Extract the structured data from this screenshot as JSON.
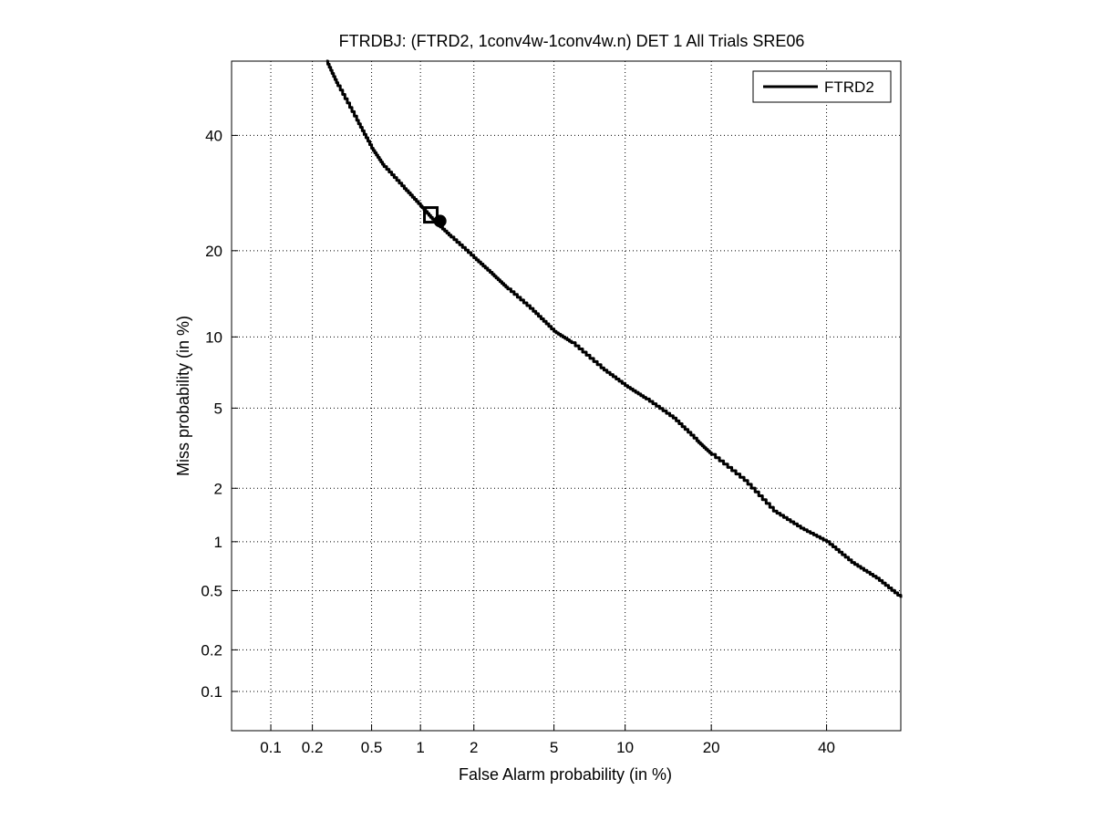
{
  "chart_data": {
    "type": "line",
    "title": "FTRDBJ: (FTRD2, 1conv4w-1conv4w.n) DET 1 All Trials SRE06",
    "xlabel": "False Alarm probability (in %)",
    "ylabel": "Miss probability (in %)",
    "x_scale": "normal-deviate (probit)",
    "y_scale": "normal-deviate (probit)",
    "xlim": [
      0.05,
      55
    ],
    "ylim": [
      0.05,
      55
    ],
    "x_ticks": [
      0.1,
      0.2,
      0.5,
      1,
      2,
      5,
      10,
      20,
      40
    ],
    "x_tick_labels": [
      "0.1",
      "0.2",
      "0.5",
      "1",
      "2",
      "5",
      "10",
      "20",
      "40"
    ],
    "y_ticks": [
      0.1,
      0.2,
      0.5,
      1,
      2,
      5,
      10,
      20,
      40
    ],
    "y_tick_labels": [
      "0.1",
      "0.2",
      "0.5",
      "1",
      "2",
      "5",
      "10",
      "20",
      "40"
    ],
    "grid": true,
    "legend_position": "top-right",
    "series": [
      {
        "name": "FTRD2",
        "color": "#000000",
        "x": [
          0.25,
          0.3,
          0.4,
          0.5,
          0.6,
          0.8,
          1.0,
          1.2,
          1.5,
          2.0,
          2.5,
          3.0,
          4.0,
          5.0,
          6.0,
          8.0,
          10.0,
          12.0,
          15.0,
          18.0,
          20.0,
          25.0,
          30.0,
          35.0,
          40.0,
          45.0,
          50.0,
          55.0
        ],
        "y": [
          55.0,
          50.0,
          43.0,
          37.5,
          34.0,
          30.0,
          27.0,
          24.5,
          22.0,
          19.0,
          16.8,
          15.0,
          12.5,
          10.5,
          9.5,
          7.5,
          6.3,
          5.5,
          4.5,
          3.5,
          3.0,
          2.2,
          1.5,
          1.2,
          1.0,
          0.75,
          0.6,
          0.45
        ]
      }
    ],
    "markers": [
      {
        "shape": "square",
        "x": 1.15,
        "y": 25.5
      },
      {
        "shape": "circle",
        "x": 1.3,
        "y": 24.5
      }
    ]
  }
}
